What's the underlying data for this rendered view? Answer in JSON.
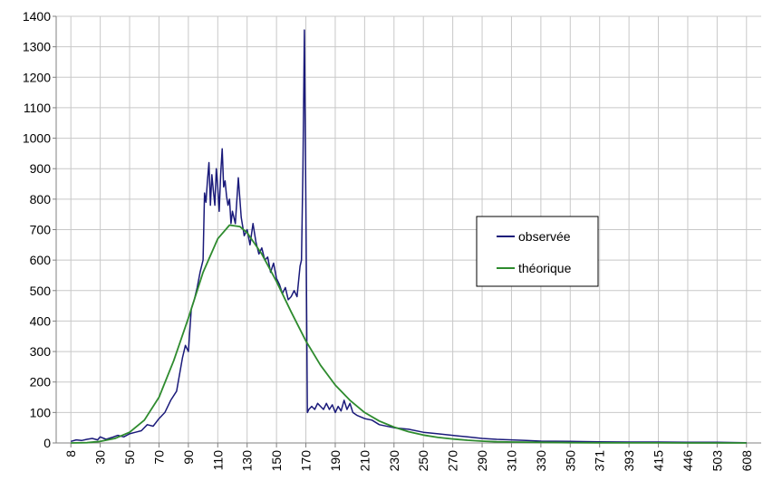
{
  "chart_data": {
    "type": "line",
    "title": "",
    "xlabel": "",
    "ylabel": "",
    "ylim": [
      0,
      1400
    ],
    "y_ticks": [
      0,
      100,
      200,
      300,
      400,
      500,
      600,
      700,
      800,
      900,
      1000,
      1100,
      1200,
      1300,
      1400
    ],
    "x_tick_labels": [
      "8",
      "30",
      "50",
      "70",
      "90",
      "110",
      "130",
      "150",
      "170",
      "190",
      "210",
      "230",
      "250",
      "270",
      "290",
      "310",
      "330",
      "350",
      "371",
      "393",
      "415",
      "446",
      "503",
      "608"
    ],
    "grid": true,
    "legend_position": "center-right",
    "colors": {
      "observee": "#1a1a7a",
      "theorique": "#2e8b2e",
      "grid": "#c8c8c8",
      "axis": "#808080"
    },
    "series": [
      {
        "name": "observée",
        "x": [
          8,
          12,
          16,
          20,
          24,
          28,
          30,
          34,
          38,
          42,
          46,
          50,
          54,
          58,
          62,
          66,
          70,
          74,
          78,
          82,
          86,
          88,
          90,
          92,
          94,
          96,
          98,
          100,
          101,
          102,
          103,
          104,
          105,
          106,
          107,
          108,
          109,
          110,
          111,
          112,
          113,
          114,
          115,
          116,
          117,
          118,
          119,
          120,
          121,
          122,
          124,
          126,
          128,
          130,
          132,
          134,
          136,
          138,
          140,
          142,
          144,
          146,
          148,
          150,
          152,
          154,
          156,
          158,
          160,
          162,
          164,
          166,
          167,
          168,
          169,
          170,
          171,
          172,
          174,
          176,
          178,
          180,
          182,
          184,
          186,
          188,
          190,
          192,
          194,
          196,
          198,
          200,
          202,
          205,
          210,
          215,
          220,
          230,
          240,
          250,
          260,
          270,
          280,
          290,
          300,
          310,
          320,
          330,
          350,
          371,
          393,
          415,
          446,
          503,
          608
        ],
        "y": [
          5,
          10,
          8,
          12,
          15,
          10,
          20,
          12,
          18,
          25,
          20,
          30,
          35,
          40,
          60,
          55,
          80,
          100,
          140,
          170,
          280,
          320,
          300,
          440,
          470,
          510,
          560,
          600,
          820,
          790,
          860,
          920,
          780,
          880,
          830,
          780,
          900,
          840,
          760,
          880,
          965,
          840,
          860,
          810,
          780,
          800,
          720,
          760,
          740,
          720,
          870,
          740,
          680,
          700,
          650,
          720,
          660,
          620,
          640,
          600,
          610,
          560,
          590,
          540,
          520,
          490,
          510,
          470,
          480,
          500,
          480,
          580,
          600,
          900,
          1355,
          800,
          100,
          110,
          120,
          110,
          130,
          120,
          110,
          130,
          110,
          125,
          100,
          120,
          105,
          140,
          110,
          130,
          100,
          90,
          80,
          75,
          60,
          50,
          45,
          35,
          30,
          25,
          20,
          15,
          12,
          10,
          8,
          6,
          5,
          4,
          3,
          3,
          2,
          2,
          1
        ]
      },
      {
        "name": "théorique",
        "x": [
          8,
          20,
          30,
          40,
          50,
          60,
          70,
          80,
          90,
          100,
          110,
          118,
          125,
          130,
          140,
          150,
          160,
          170,
          180,
          190,
          200,
          210,
          220,
          230,
          240,
          250,
          260,
          270,
          280,
          290,
          300,
          310,
          330,
          350,
          371,
          393,
          415,
          446,
          503,
          608
        ],
        "y": [
          0,
          1,
          5,
          15,
          35,
          75,
          150,
          270,
          410,
          560,
          670,
          715,
          710,
          690,
          620,
          530,
          430,
          335,
          255,
          190,
          140,
          100,
          72,
          52,
          37,
          26,
          18,
          13,
          9,
          6,
          4,
          3,
          2,
          1,
          0.5,
          0.3,
          0.2,
          0.1,
          0.05,
          0
        ]
      }
    ]
  }
}
